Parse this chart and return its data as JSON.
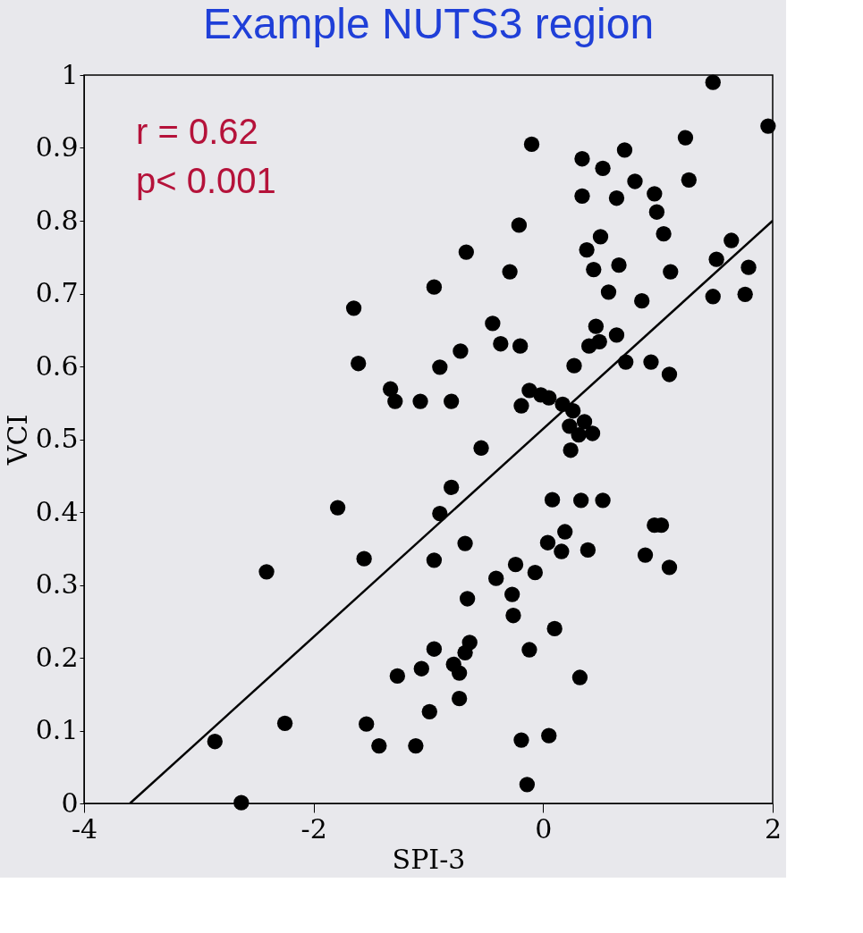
{
  "chart_data": {
    "type": "scatter",
    "title": "Example NUTS3 region",
    "xlabel": "SPI-3",
    "ylabel": "VCI",
    "annotations": [
      "r = 0.62",
      "p< 0.001"
    ],
    "xlim": [
      -4,
      2
    ],
    "xticks": [
      {
        "value": -4,
        "label": "-4"
      },
      {
        "value": -2,
        "label": "-2"
      },
      {
        "value": 0,
        "label": "0"
      },
      {
        "value": 2,
        "label": "2"
      }
    ],
    "ylim": [
      0,
      1
    ],
    "yticks": [
      0,
      0.1,
      0.2,
      0.3,
      0.4,
      0.5,
      0.6,
      0.7,
      0.8,
      0.9,
      1
    ],
    "grid": false,
    "marker": "circle",
    "series": [
      {
        "color": "#000000",
        "x": [
          1.48,
          1.96,
          -0.1,
          0.34,
          0.52,
          0.71,
          1.24,
          1.27,
          0.34,
          0.64,
          0.8,
          0.97,
          0.99,
          1.05,
          0.5,
          -0.21,
          -0.67,
          0.38,
          0.44,
          0.66,
          0.57,
          1.11,
          -0.29,
          -0.95,
          1.48,
          1.51,
          1.64,
          1.79,
          1.76,
          0.86,
          -1.65,
          -0.44,
          -0.37,
          -0.2,
          0.46,
          0.49,
          0.64,
          0.4,
          0.94,
          0.72,
          1.1,
          -0.72,
          -0.9,
          -1.61,
          -1.33,
          -1.29,
          -1.07,
          -0.8,
          -0.19,
          -0.12,
          -0.02,
          0.05,
          0.17,
          0.26,
          0.23,
          0.31,
          0.43,
          0.36,
          0.24,
          0.27,
          -0.54,
          -0.8,
          -0.9,
          -1.79,
          0.08,
          0.33,
          0.52,
          0.19,
          0.04,
          0.16,
          0.39,
          -0.68,
          -0.07,
          -0.24,
          -0.95,
          -1.56,
          -2.41,
          -0.41,
          -0.27,
          -0.26,
          -0.66,
          0.89,
          1.1,
          0.97,
          1.03,
          -0.12,
          0.1,
          -0.64,
          -0.68,
          -0.78,
          -0.73,
          -0.95,
          -1.06,
          -1.27,
          -0.99,
          -0.73,
          0.32,
          -2.25,
          -1.54,
          -1.43,
          -1.11,
          -0.19,
          0.05,
          -0.14,
          -2.86,
          -2.63
        ],
        "values": [
          0.99,
          0.93,
          0.905,
          0.885,
          0.872,
          0.897,
          0.914,
          0.856,
          0.834,
          0.831,
          0.854,
          0.837,
          0.812,
          0.782,
          0.778,
          0.794,
          0.757,
          0.76,
          0.733,
          0.739,
          0.702,
          0.73,
          0.73,
          0.709,
          0.696,
          0.747,
          0.773,
          0.736,
          0.699,
          0.69,
          0.68,
          0.659,
          0.631,
          0.628,
          0.655,
          0.634,
          0.643,
          0.628,
          0.606,
          0.606,
          0.589,
          0.621,
          0.599,
          0.604,
          0.569,
          0.552,
          0.552,
          0.552,
          0.546,
          0.567,
          0.561,
          0.557,
          0.548,
          0.539,
          0.518,
          0.506,
          0.508,
          0.524,
          0.485,
          0.601,
          0.488,
          0.434,
          0.398,
          0.406,
          0.417,
          0.416,
          0.416,
          0.373,
          0.358,
          0.346,
          0.348,
          0.357,
          0.317,
          0.328,
          0.334,
          0.336,
          0.318,
          0.309,
          0.287,
          0.258,
          0.281,
          0.341,
          0.324,
          0.382,
          0.382,
          0.211,
          0.24,
          0.221,
          0.207,
          0.191,
          0.179,
          0.212,
          0.185,
          0.175,
          0.126,
          0.144,
          0.173,
          0.11,
          0.109,
          0.079,
          0.079,
          0.087,
          0.093,
          0.026,
          0.085,
          0.001
        ]
      },
      {
        "type": "line",
        "marker": "none",
        "color": "#000000",
        "x": [
          -3.6,
          2
        ],
        "values": [
          0,
          0.8
        ]
      }
    ]
  }
}
